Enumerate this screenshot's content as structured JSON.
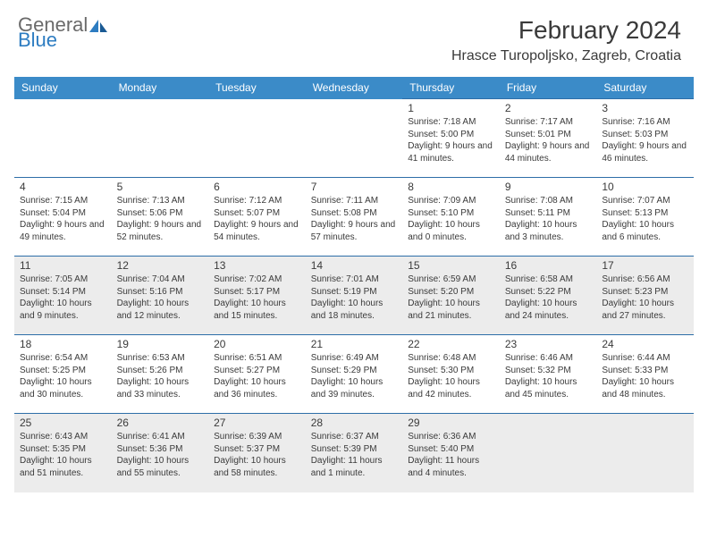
{
  "brand": {
    "part1": "General",
    "part2": "Blue"
  },
  "title": "February 2024",
  "location": "Hrasce Turopoljsko, Zagreb, Croatia",
  "colors": {
    "header_bg": "#3b8bc8",
    "border": "#2d6ea8",
    "shaded": "#ececec",
    "text": "#3a3a3a",
    "logo_gray": "#6a6a6a",
    "logo_blue": "#2d7cc1"
  },
  "dow": [
    "Sunday",
    "Monday",
    "Tuesday",
    "Wednesday",
    "Thursday",
    "Friday",
    "Saturday"
  ],
  "weeks": [
    [
      null,
      null,
      null,
      null,
      {
        "n": "1",
        "sr": "7:18 AM",
        "ss": "5:00 PM",
        "dl": "9 hours and 41 minutes."
      },
      {
        "n": "2",
        "sr": "7:17 AM",
        "ss": "5:01 PM",
        "dl": "9 hours and 44 minutes."
      },
      {
        "n": "3",
        "sr": "7:16 AM",
        "ss": "5:03 PM",
        "dl": "9 hours and 46 minutes."
      }
    ],
    [
      {
        "n": "4",
        "sr": "7:15 AM",
        "ss": "5:04 PM",
        "dl": "9 hours and 49 minutes."
      },
      {
        "n": "5",
        "sr": "7:13 AM",
        "ss": "5:06 PM",
        "dl": "9 hours and 52 minutes."
      },
      {
        "n": "6",
        "sr": "7:12 AM",
        "ss": "5:07 PM",
        "dl": "9 hours and 54 minutes."
      },
      {
        "n": "7",
        "sr": "7:11 AM",
        "ss": "5:08 PM",
        "dl": "9 hours and 57 minutes."
      },
      {
        "n": "8",
        "sr": "7:09 AM",
        "ss": "5:10 PM",
        "dl": "10 hours and 0 minutes."
      },
      {
        "n": "9",
        "sr": "7:08 AM",
        "ss": "5:11 PM",
        "dl": "10 hours and 3 minutes."
      },
      {
        "n": "10",
        "sr": "7:07 AM",
        "ss": "5:13 PM",
        "dl": "10 hours and 6 minutes."
      }
    ],
    [
      {
        "n": "11",
        "sr": "7:05 AM",
        "ss": "5:14 PM",
        "dl": "10 hours and 9 minutes."
      },
      {
        "n": "12",
        "sr": "7:04 AM",
        "ss": "5:16 PM",
        "dl": "10 hours and 12 minutes."
      },
      {
        "n": "13",
        "sr": "7:02 AM",
        "ss": "5:17 PM",
        "dl": "10 hours and 15 minutes."
      },
      {
        "n": "14",
        "sr": "7:01 AM",
        "ss": "5:19 PM",
        "dl": "10 hours and 18 minutes."
      },
      {
        "n": "15",
        "sr": "6:59 AM",
        "ss": "5:20 PM",
        "dl": "10 hours and 21 minutes."
      },
      {
        "n": "16",
        "sr": "6:58 AM",
        "ss": "5:22 PM",
        "dl": "10 hours and 24 minutes."
      },
      {
        "n": "17",
        "sr": "6:56 AM",
        "ss": "5:23 PM",
        "dl": "10 hours and 27 minutes."
      }
    ],
    [
      {
        "n": "18",
        "sr": "6:54 AM",
        "ss": "5:25 PM",
        "dl": "10 hours and 30 minutes."
      },
      {
        "n": "19",
        "sr": "6:53 AM",
        "ss": "5:26 PM",
        "dl": "10 hours and 33 minutes."
      },
      {
        "n": "20",
        "sr": "6:51 AM",
        "ss": "5:27 PM",
        "dl": "10 hours and 36 minutes."
      },
      {
        "n": "21",
        "sr": "6:49 AM",
        "ss": "5:29 PM",
        "dl": "10 hours and 39 minutes."
      },
      {
        "n": "22",
        "sr": "6:48 AM",
        "ss": "5:30 PM",
        "dl": "10 hours and 42 minutes."
      },
      {
        "n": "23",
        "sr": "6:46 AM",
        "ss": "5:32 PM",
        "dl": "10 hours and 45 minutes."
      },
      {
        "n": "24",
        "sr": "6:44 AM",
        "ss": "5:33 PM",
        "dl": "10 hours and 48 minutes."
      }
    ],
    [
      {
        "n": "25",
        "sr": "6:43 AM",
        "ss": "5:35 PM",
        "dl": "10 hours and 51 minutes."
      },
      {
        "n": "26",
        "sr": "6:41 AM",
        "ss": "5:36 PM",
        "dl": "10 hours and 55 minutes."
      },
      {
        "n": "27",
        "sr": "6:39 AM",
        "ss": "5:37 PM",
        "dl": "10 hours and 58 minutes."
      },
      {
        "n": "28",
        "sr": "6:37 AM",
        "ss": "5:39 PM",
        "dl": "11 hours and 1 minute."
      },
      {
        "n": "29",
        "sr": "6:36 AM",
        "ss": "5:40 PM",
        "dl": "11 hours and 4 minutes."
      },
      null,
      null
    ]
  ],
  "shaded_rows": [
    2,
    4
  ],
  "labels": {
    "sunrise": "Sunrise:",
    "sunset": "Sunset:",
    "daylight": "Daylight:"
  }
}
